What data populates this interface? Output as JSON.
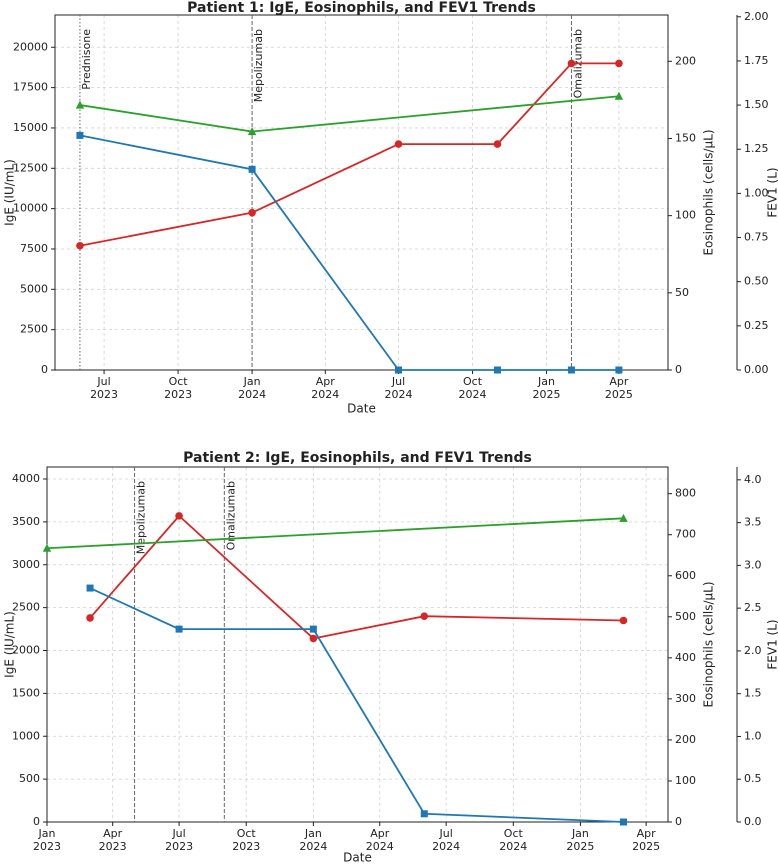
{
  "chart_data": [
    {
      "type": "line",
      "title": "Patient 1: IgE, Eosinophils, and FEV1 Trends",
      "xlabel": "Date",
      "ylabel": "IgE (IU/mL)",
      "y2label": "Eosinophils (cells/μL)",
      "y3label": "FEV1 (L)",
      "grid": true,
      "x": [
        "2023-06",
        "2024-01",
        "2024-07",
        "2024-11",
        "2025-02",
        "2025-04"
      ],
      "xlim": [
        "2023-05",
        "2025-06"
      ],
      "xticks": [
        {
          "value": "2023-07",
          "label": "Jul\n2023"
        },
        {
          "value": "2023-10",
          "label": "Oct\n2023"
        },
        {
          "value": "2024-01",
          "label": "Jan\n2024"
        },
        {
          "value": "2024-04",
          "label": "Apr\n2024"
        },
        {
          "value": "2024-07",
          "label": "Jul\n2024"
        },
        {
          "value": "2024-10",
          "label": "Oct\n2024"
        },
        {
          "value": "2025-01",
          "label": "Jan\n2025"
        },
        {
          "value": "2025-04",
          "label": "Apr\n2025"
        }
      ],
      "ylim": [
        0,
        22000
      ],
      "yticks": [
        0,
        2500,
        5000,
        7500,
        10000,
        12500,
        15000,
        17500,
        20000
      ],
      "y2lim": [
        0,
        230
      ],
      "y2ticks": [
        0,
        50,
        100,
        150,
        200
      ],
      "y3lim": [
        0,
        2.01
      ],
      "y3ticks": [
        {
          "value": 0,
          "label": "0.00"
        },
        0.25,
        {
          "value": 0.5,
          "label": "0.50"
        },
        0.75,
        {
          "value": 1,
          "label": "1.00"
        },
        1.25,
        {
          "value": 1.5,
          "label": "1.50"
        },
        1.75,
        {
          "value": 2,
          "label": "2.00"
        }
      ],
      "series": [
        {
          "name": "IgE",
          "color": "#d62728",
          "marker": "circle",
          "values": [
            7700,
            9750,
            14000,
            14000,
            19000,
            19000
          ]
        },
        {
          "name": "Eosinophils",
          "color": "#1f77b4",
          "marker": "square",
          "axis": "y2",
          "values": [
            152,
            130,
            0,
            0,
            0,
            0
          ]
        },
        {
          "name": "FEV1",
          "color": "#2ca02c",
          "marker": "triangle",
          "axis": "y3",
          "x": [
            "2023-06",
            "2024-01",
            "2025-04"
          ],
          "values": [
            1.5,
            1.35,
            1.55
          ]
        }
      ],
      "annotations": [
        {
          "x": "2023-06",
          "label": "Prednisone",
          "linestyle": "dotted"
        },
        {
          "x": "2024-01",
          "label": "Mepolizumab",
          "linestyle": "dashed"
        },
        {
          "x": "2025-02",
          "label": "Omalizumab",
          "linestyle": "dashed"
        }
      ]
    },
    {
      "type": "line",
      "title": "Patient 2: IgE, Eosinophils, and FEV1 Trends",
      "xlabel": "Date",
      "ylabel": "IgE (IU/mL)",
      "y2label": "Eosinophils (cells/μL)",
      "y3label": "FEV1 (L)",
      "grid": true,
      "x": [
        "2023-03",
        "2023-07",
        "2024-01",
        "2024-06",
        "2025-03"
      ],
      "xlim": [
        "2023-01",
        "2025-05"
      ],
      "xticks": [
        {
          "value": "2023-01",
          "label": "Jan\n2023"
        },
        {
          "value": "2023-04",
          "label": "Apr\n2023"
        },
        {
          "value": "2023-07",
          "label": "Jul\n2023"
        },
        {
          "value": "2023-10",
          "label": "Oct\n2023"
        },
        {
          "value": "2024-01",
          "label": "Jan\n2024"
        },
        {
          "value": "2024-04",
          "label": "Apr\n2024"
        },
        {
          "value": "2024-07",
          "label": "Jul\n2024"
        },
        {
          "value": "2024-10",
          "label": "Oct\n2024"
        },
        {
          "value": "2025-01",
          "label": "Jan\n2025"
        },
        {
          "value": "2025-04",
          "label": "Apr\n2025"
        }
      ],
      "ylim": [
        0,
        4140
      ],
      "yticks": [
        0,
        500,
        1000,
        1500,
        2000,
        2500,
        3000,
        3500,
        4000
      ],
      "y2lim": [
        0,
        865
      ],
      "y2ticks": [
        0,
        100,
        200,
        300,
        400,
        500,
        600,
        700,
        800
      ],
      "y3lim": [
        0,
        4.15
      ],
      "y3ticks": [
        {
          "value": 0,
          "label": "0.0"
        },
        0.5,
        {
          "value": 1,
          "label": "1.0"
        },
        1.5,
        {
          "value": 2,
          "label": "2.0"
        },
        2.5,
        {
          "value": 3,
          "label": "3.0"
        },
        3.5,
        {
          "value": 4,
          "label": "4.0"
        }
      ],
      "series": [
        {
          "name": "IgE",
          "color": "#d62728",
          "marker": "circle",
          "values": [
            2380,
            3570,
            2140,
            2400,
            2350
          ]
        },
        {
          "name": "Eosinophils",
          "color": "#1f77b4",
          "marker": "square",
          "axis": "y2",
          "values": [
            570,
            470,
            470,
            20,
            0
          ]
        },
        {
          "name": "FEV1",
          "color": "#2ca02c",
          "marker": "triangle",
          "axis": "y3",
          "x": [
            "2023-01",
            "2025-03"
          ],
          "values": [
            3.2,
            3.55
          ]
        }
      ],
      "annotations": [
        {
          "x": "2023-05",
          "label": "Mepolizumab",
          "linestyle": "dashed"
        },
        {
          "x": "2023-09",
          "label": "Omalizumab",
          "linestyle": "dashed"
        }
      ]
    }
  ]
}
